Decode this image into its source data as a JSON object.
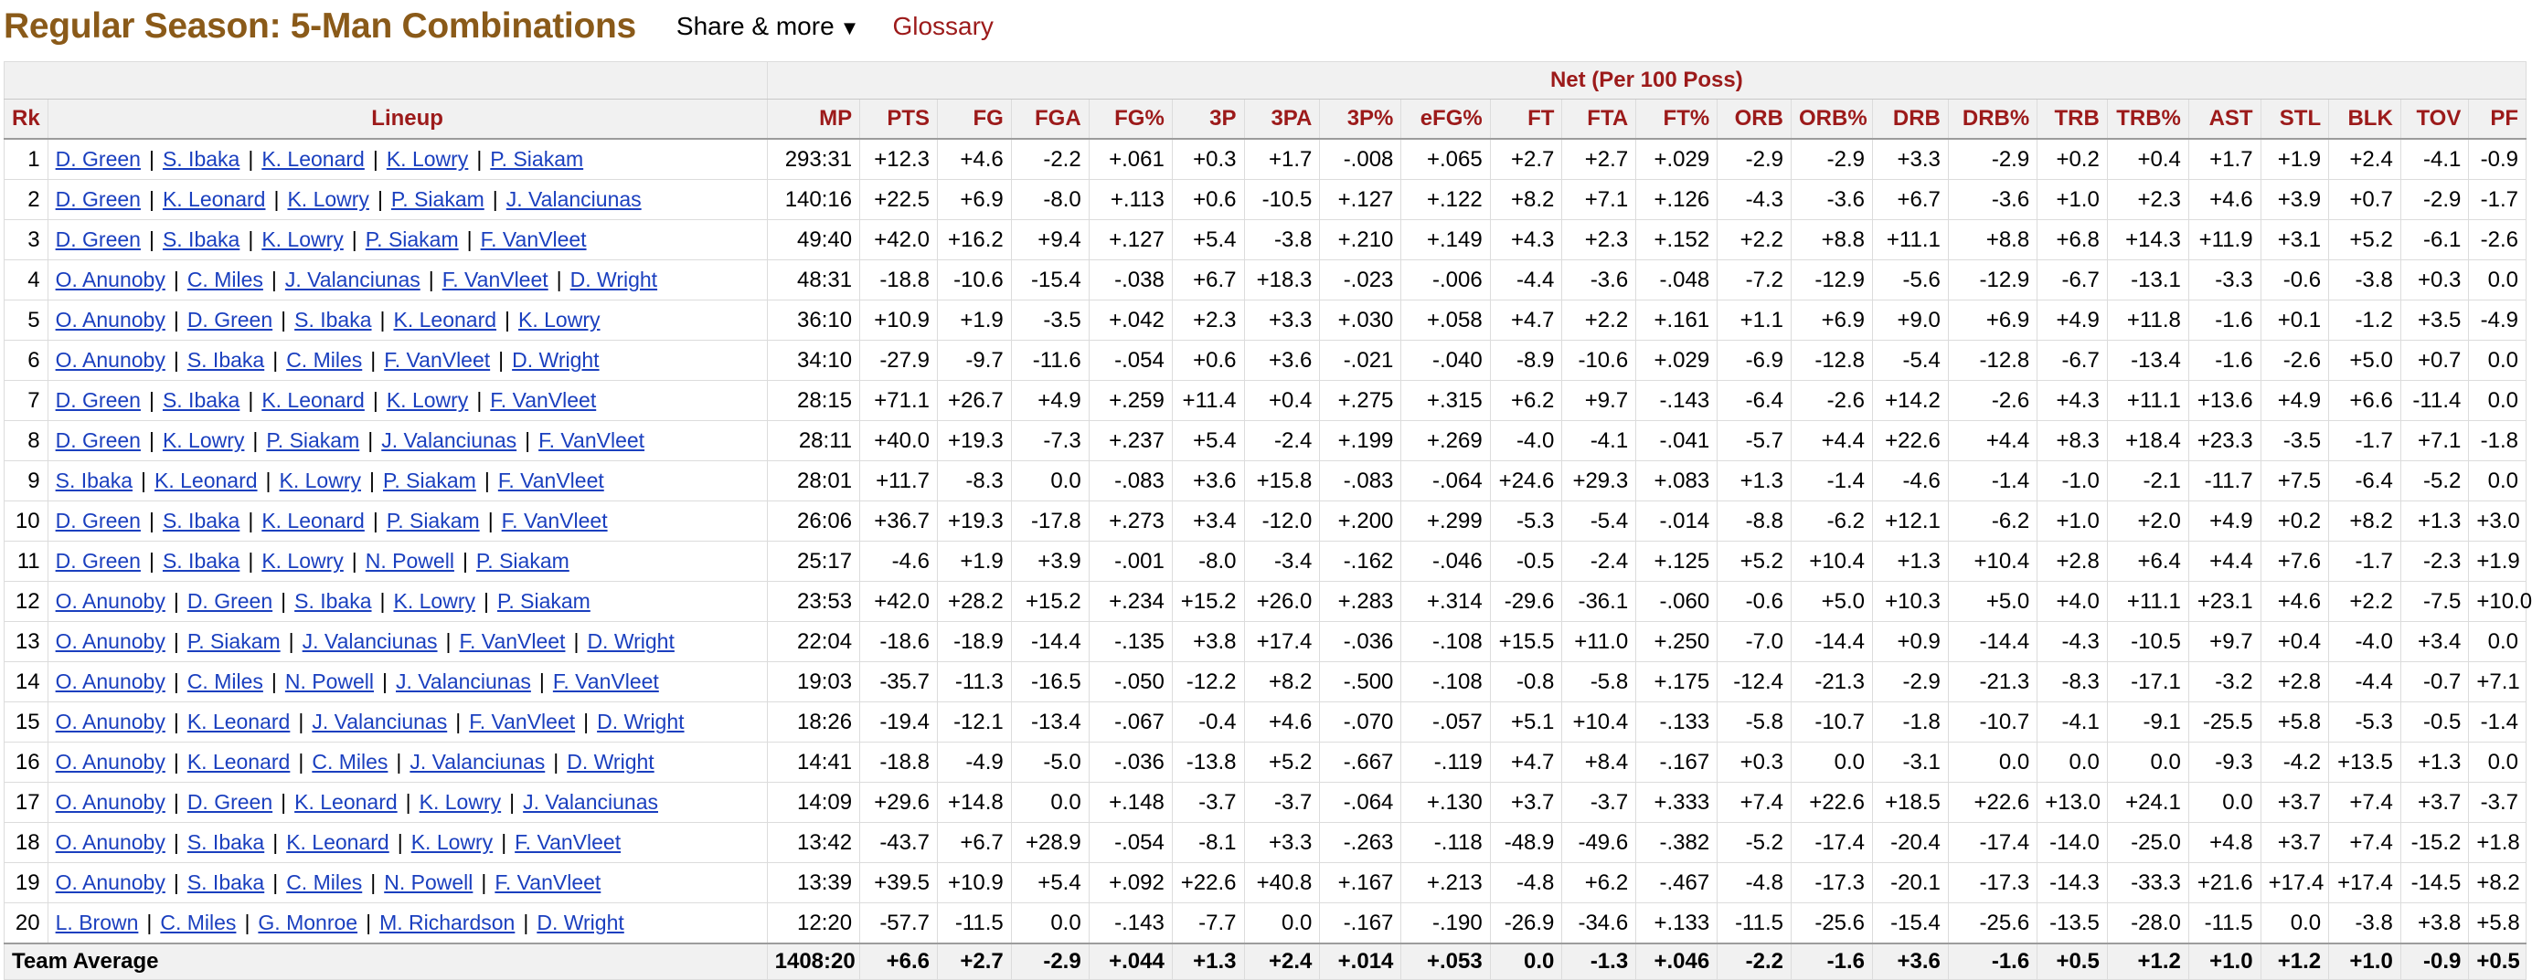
{
  "header": {
    "title": "Regular Season: 5-Man Combinations",
    "share_label": "Share & more",
    "share_caret": "▼",
    "glossary_label": "Glossary"
  },
  "table": {
    "group_header": "Net (Per 100 Poss)",
    "columns": [
      "Rk",
      "Lineup",
      "MP",
      "PTS",
      "FG",
      "FGA",
      "FG%",
      "3P",
      "3PA",
      "3P%",
      "eFG%",
      "FT",
      "FTA",
      "FT%",
      "ORB",
      "ORB%",
      "DRB",
      "DRB%",
      "TRB",
      "TRB%",
      "AST",
      "STL",
      "BLK",
      "TOV",
      "PF"
    ],
    "rows": [
      {
        "rk": "1",
        "lineup": [
          "D. Green",
          "S. Ibaka",
          "K. Leonard",
          "K. Lowry",
          "P. Siakam"
        ],
        "stats": [
          "293:31",
          "+12.3",
          "+4.6",
          "-2.2",
          "+.061",
          "+0.3",
          "+1.7",
          "-.008",
          "+.065",
          "+2.7",
          "+2.7",
          "+.029",
          "-2.9",
          "-2.9",
          "+3.3",
          "-2.9",
          "+0.2",
          "+0.4",
          "+1.7",
          "+1.9",
          "+2.4",
          "-4.1",
          "-0.9"
        ]
      },
      {
        "rk": "2",
        "lineup": [
          "D. Green",
          "K. Leonard",
          "K. Lowry",
          "P. Siakam",
          "J. Valanciunas"
        ],
        "stats": [
          "140:16",
          "+22.5",
          "+6.9",
          "-8.0",
          "+.113",
          "+0.6",
          "-10.5",
          "+.127",
          "+.122",
          "+8.2",
          "+7.1",
          "+.126",
          "-4.3",
          "-3.6",
          "+6.7",
          "-3.6",
          "+1.0",
          "+2.3",
          "+4.6",
          "+3.9",
          "+0.7",
          "-2.9",
          "-1.7"
        ]
      },
      {
        "rk": "3",
        "lineup": [
          "D. Green",
          "S. Ibaka",
          "K. Lowry",
          "P. Siakam",
          "F. VanVleet"
        ],
        "stats": [
          "49:40",
          "+42.0",
          "+16.2",
          "+9.4",
          "+.127",
          "+5.4",
          "-3.8",
          "+.210",
          "+.149",
          "+4.3",
          "+2.3",
          "+.152",
          "+2.2",
          "+8.8",
          "+11.1",
          "+8.8",
          "+6.8",
          "+14.3",
          "+11.9",
          "+3.1",
          "+5.2",
          "-6.1",
          "-2.6"
        ]
      },
      {
        "rk": "4",
        "lineup": [
          "O. Anunoby",
          "C. Miles",
          "J. Valanciunas",
          "F. VanVleet",
          "D. Wright"
        ],
        "stats": [
          "48:31",
          "-18.8",
          "-10.6",
          "-15.4",
          "-.038",
          "+6.7",
          "+18.3",
          "-.023",
          "-.006",
          "-4.4",
          "-3.6",
          "-.048",
          "-7.2",
          "-12.9",
          "-5.6",
          "-12.9",
          "-6.7",
          "-13.1",
          "-3.3",
          "-0.6",
          "-3.8",
          "+0.3",
          "0.0"
        ]
      },
      {
        "rk": "5",
        "lineup": [
          "O. Anunoby",
          "D. Green",
          "S. Ibaka",
          "K. Leonard",
          "K. Lowry"
        ],
        "stats": [
          "36:10",
          "+10.9",
          "+1.9",
          "-3.5",
          "+.042",
          "+2.3",
          "+3.3",
          "+.030",
          "+.058",
          "+4.7",
          "+2.2",
          "+.161",
          "+1.1",
          "+6.9",
          "+9.0",
          "+6.9",
          "+4.9",
          "+11.8",
          "-1.6",
          "+0.1",
          "-1.2",
          "+3.5",
          "-4.9"
        ]
      },
      {
        "rk": "6",
        "lineup": [
          "O. Anunoby",
          "S. Ibaka",
          "C. Miles",
          "F. VanVleet",
          "D. Wright"
        ],
        "stats": [
          "34:10",
          "-27.9",
          "-9.7",
          "-11.6",
          "-.054",
          "+0.6",
          "+3.6",
          "-.021",
          "-.040",
          "-8.9",
          "-10.6",
          "+.029",
          "-6.9",
          "-12.8",
          "-5.4",
          "-12.8",
          "-6.7",
          "-13.4",
          "-1.6",
          "-2.6",
          "+5.0",
          "+0.7",
          "0.0"
        ]
      },
      {
        "rk": "7",
        "lineup": [
          "D. Green",
          "S. Ibaka",
          "K. Leonard",
          "K. Lowry",
          "F. VanVleet"
        ],
        "stats": [
          "28:15",
          "+71.1",
          "+26.7",
          "+4.9",
          "+.259",
          "+11.4",
          "+0.4",
          "+.275",
          "+.315",
          "+6.2",
          "+9.7",
          "-.143",
          "-6.4",
          "-2.6",
          "+14.2",
          "-2.6",
          "+4.3",
          "+11.1",
          "+13.6",
          "+4.9",
          "+6.6",
          "-11.4",
          "0.0"
        ]
      },
      {
        "rk": "8",
        "lineup": [
          "D. Green",
          "K. Lowry",
          "P. Siakam",
          "J. Valanciunas",
          "F. VanVleet"
        ],
        "stats": [
          "28:11",
          "+40.0",
          "+19.3",
          "-7.3",
          "+.237",
          "+5.4",
          "-2.4",
          "+.199",
          "+.269",
          "-4.0",
          "-4.1",
          "-.041",
          "-5.7",
          "+4.4",
          "+22.6",
          "+4.4",
          "+8.3",
          "+18.4",
          "+23.3",
          "-3.5",
          "-1.7",
          "+7.1",
          "-1.8"
        ]
      },
      {
        "rk": "9",
        "lineup": [
          "S. Ibaka",
          "K. Leonard",
          "K. Lowry",
          "P. Siakam",
          "F. VanVleet"
        ],
        "stats": [
          "28:01",
          "+11.7",
          "-8.3",
          "0.0",
          "-.083",
          "+3.6",
          "+15.8",
          "-.083",
          "-.064",
          "+24.6",
          "+29.3",
          "+.083",
          "+1.3",
          "-1.4",
          "-4.6",
          "-1.4",
          "-1.0",
          "-2.1",
          "-11.7",
          "+7.5",
          "-6.4",
          "-5.2",
          "0.0"
        ]
      },
      {
        "rk": "10",
        "lineup": [
          "D. Green",
          "S. Ibaka",
          "K. Leonard",
          "P. Siakam",
          "F. VanVleet"
        ],
        "stats": [
          "26:06",
          "+36.7",
          "+19.3",
          "-17.8",
          "+.273",
          "+3.4",
          "-12.0",
          "+.200",
          "+.299",
          "-5.3",
          "-5.4",
          "-.014",
          "-8.8",
          "-6.2",
          "+12.1",
          "-6.2",
          "+1.0",
          "+2.0",
          "+4.9",
          "+0.2",
          "+8.2",
          "+1.3",
          "+3.0"
        ]
      },
      {
        "rk": "11",
        "lineup": [
          "D. Green",
          "S. Ibaka",
          "K. Lowry",
          "N. Powell",
          "P. Siakam"
        ],
        "stats": [
          "25:17",
          "-4.6",
          "+1.9",
          "+3.9",
          "-.001",
          "-8.0",
          "-3.4",
          "-.162",
          "-.046",
          "-0.5",
          "-2.4",
          "+.125",
          "+5.2",
          "+10.4",
          "+1.3",
          "+10.4",
          "+2.8",
          "+6.4",
          "+4.4",
          "+7.6",
          "-1.7",
          "-2.3",
          "+1.9"
        ]
      },
      {
        "rk": "12",
        "lineup": [
          "O. Anunoby",
          "D. Green",
          "S. Ibaka",
          "K. Lowry",
          "P. Siakam"
        ],
        "stats": [
          "23:53",
          "+42.0",
          "+28.2",
          "+15.2",
          "+.234",
          "+15.2",
          "+26.0",
          "+.283",
          "+.314",
          "-29.6",
          "-36.1",
          "-.060",
          "-0.6",
          "+5.0",
          "+10.3",
          "+5.0",
          "+4.0",
          "+11.1",
          "+23.1",
          "+4.6",
          "+2.2",
          "-7.5",
          "+10.0"
        ]
      },
      {
        "rk": "13",
        "lineup": [
          "O. Anunoby",
          "P. Siakam",
          "J. Valanciunas",
          "F. VanVleet",
          "D. Wright"
        ],
        "stats": [
          "22:04",
          "-18.6",
          "-18.9",
          "-14.4",
          "-.135",
          "+3.8",
          "+17.4",
          "-.036",
          "-.108",
          "+15.5",
          "+11.0",
          "+.250",
          "-7.0",
          "-14.4",
          "+0.9",
          "-14.4",
          "-4.3",
          "-10.5",
          "+9.7",
          "+0.4",
          "-4.0",
          "+3.4",
          "0.0"
        ]
      },
      {
        "rk": "14",
        "lineup": [
          "O. Anunoby",
          "C. Miles",
          "N. Powell",
          "J. Valanciunas",
          "F. VanVleet"
        ],
        "stats": [
          "19:03",
          "-35.7",
          "-11.3",
          "-16.5",
          "-.050",
          "-12.2",
          "+8.2",
          "-.500",
          "-.108",
          "-0.8",
          "-5.8",
          "+.175",
          "-12.4",
          "-21.3",
          "-2.9",
          "-21.3",
          "-8.3",
          "-17.1",
          "-3.2",
          "+2.8",
          "-4.4",
          "-0.7",
          "+7.1"
        ]
      },
      {
        "rk": "15",
        "lineup": [
          "O. Anunoby",
          "K. Leonard",
          "J. Valanciunas",
          "F. VanVleet",
          "D. Wright"
        ],
        "stats": [
          "18:26",
          "-19.4",
          "-12.1",
          "-13.4",
          "-.067",
          "-0.4",
          "+4.6",
          "-.070",
          "-.057",
          "+5.1",
          "+10.4",
          "-.133",
          "-5.8",
          "-10.7",
          "-1.8",
          "-10.7",
          "-4.1",
          "-9.1",
          "-25.5",
          "+5.8",
          "-5.3",
          "-0.5",
          "-1.4"
        ]
      },
      {
        "rk": "16",
        "lineup": [
          "O. Anunoby",
          "K. Leonard",
          "C. Miles",
          "J. Valanciunas",
          "D. Wright"
        ],
        "stats": [
          "14:41",
          "-18.8",
          "-4.9",
          "-5.0",
          "-.036",
          "-13.8",
          "+5.2",
          "-.667",
          "-.119",
          "+4.7",
          "+8.4",
          "-.167",
          "+0.3",
          "0.0",
          "-3.1",
          "0.0",
          "0.0",
          "0.0",
          "-9.3",
          "-4.2",
          "+13.5",
          "+1.3",
          "0.0"
        ]
      },
      {
        "rk": "17",
        "lineup": [
          "O. Anunoby",
          "D. Green",
          "K. Leonard",
          "K. Lowry",
          "J. Valanciunas"
        ],
        "stats": [
          "14:09",
          "+29.6",
          "+14.8",
          "0.0",
          "+.148",
          "-3.7",
          "-3.7",
          "-.064",
          "+.130",
          "+3.7",
          "-3.7",
          "+.333",
          "+7.4",
          "+22.6",
          "+18.5",
          "+22.6",
          "+13.0",
          "+24.1",
          "0.0",
          "+3.7",
          "+7.4",
          "+3.7",
          "-3.7"
        ]
      },
      {
        "rk": "18",
        "lineup": [
          "O. Anunoby",
          "S. Ibaka",
          "K. Leonard",
          "K. Lowry",
          "F. VanVleet"
        ],
        "stats": [
          "13:42",
          "-43.7",
          "+6.7",
          "+28.9",
          "-.054",
          "-8.1",
          "+3.3",
          "-.263",
          "-.118",
          "-48.9",
          "-49.6",
          "-.382",
          "-5.2",
          "-17.4",
          "-20.4",
          "-17.4",
          "-14.0",
          "-25.0",
          "+4.8",
          "+3.7",
          "+7.4",
          "-15.2",
          "+1.8"
        ]
      },
      {
        "rk": "19",
        "lineup": [
          "O. Anunoby",
          "S. Ibaka",
          "C. Miles",
          "N. Powell",
          "F. VanVleet"
        ],
        "stats": [
          "13:39",
          "+39.5",
          "+10.9",
          "+5.4",
          "+.092",
          "+22.6",
          "+40.8",
          "+.167",
          "+.213",
          "-4.8",
          "+6.2",
          "-.467",
          "-4.8",
          "-17.3",
          "-20.1",
          "-17.3",
          "-14.3",
          "-33.3",
          "+21.6",
          "+17.4",
          "+17.4",
          "-14.5",
          "+8.2"
        ]
      },
      {
        "rk": "20",
        "lineup": [
          "L. Brown",
          "C. Miles",
          "G. Monroe",
          "M. Richardson",
          "D. Wright"
        ],
        "stats": [
          "12:20",
          "-57.7",
          "-11.5",
          "0.0",
          "-.143",
          "-7.7",
          "0.0",
          "-.167",
          "-.190",
          "-26.9",
          "-34.6",
          "+.133",
          "-11.5",
          "-25.6",
          "-15.4",
          "-25.6",
          "-13.5",
          "-28.0",
          "-11.5",
          "0.0",
          "-3.8",
          "+3.8",
          "+5.8"
        ]
      }
    ],
    "footer": {
      "label": "Team Average",
      "stats": [
        "1408:20",
        "+6.6",
        "+2.7",
        "-2.9",
        "+.044",
        "+1.3",
        "+2.4",
        "+.014",
        "+.053",
        "0.0",
        "-1.3",
        "+.046",
        "-2.2",
        "-1.6",
        "+3.6",
        "-1.6",
        "+0.5",
        "+1.2",
        "+1.0",
        "+1.2",
        "+1.0",
        "-0.9",
        "+0.5"
      ]
    }
  }
}
